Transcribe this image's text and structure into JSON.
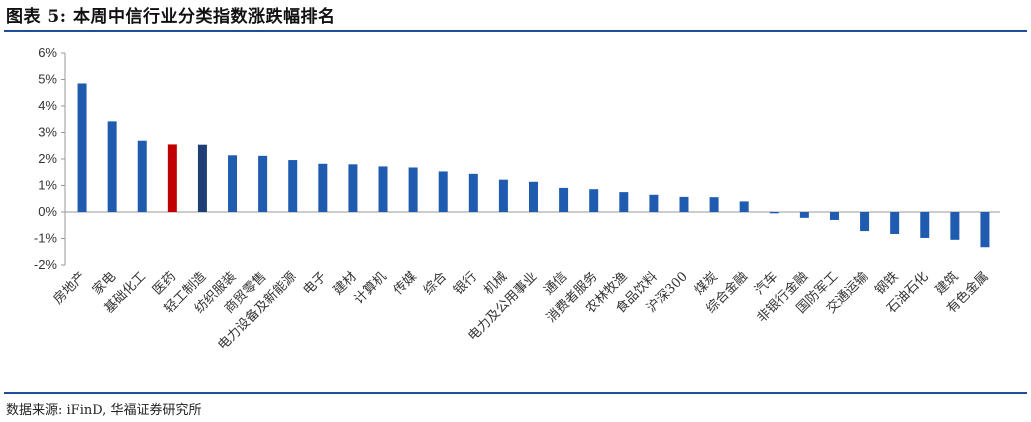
{
  "title": "图表 5:  本周中信行业分类指数涨跌幅排名",
  "source": "数据来源: iFinD, 华福证券研究所",
  "colors": {
    "default": "#1f5cb0",
    "highlight_red": "#c00000",
    "highlight_navy": "#1f3e73",
    "rule": "#1f4e9c"
  },
  "chart_data": {
    "type": "bar",
    "categories": [
      "房地产",
      "家电",
      "基础化工",
      "医药",
      "轻工制造",
      "纺织服装",
      "商贸零售",
      "电力设备及新能源",
      "电子",
      "建材",
      "计算机",
      "传媒",
      "综合",
      "银行",
      "机械",
      "电力及公用事业",
      "通信",
      "消费者服务",
      "农林牧渔",
      "食品饮料",
      "沪深300",
      "煤炭",
      "综合金融",
      "汽车",
      "非银行金融",
      "国防军工",
      "交通运输",
      "钢铁",
      "石油石化",
      "建筑",
      "有色金属"
    ],
    "values": [
      4.85,
      3.42,
      2.69,
      2.55,
      2.54,
      2.14,
      2.12,
      1.96,
      1.82,
      1.8,
      1.72,
      1.68,
      1.53,
      1.44,
      1.22,
      1.14,
      0.91,
      0.86,
      0.75,
      0.65,
      0.57,
      0.56,
      0.4,
      -0.05,
      -0.22,
      -0.3,
      -0.72,
      -0.83,
      -0.98,
      -1.05,
      -1.33
    ],
    "highlight": {
      "3": "highlight_red",
      "4": "highlight_navy"
    },
    "ylim": [
      -2,
      6
    ],
    "yticks": [
      6,
      5,
      4,
      3,
      2,
      1,
      0,
      -1,
      -2
    ],
    "ytick_labels": [
      "6%",
      "5%",
      "4%",
      "3%",
      "2%",
      "1%",
      "0%",
      "-1%",
      "-2%"
    ],
    "grid": false,
    "legend": "none",
    "xlabel": "",
    "ylabel": ""
  }
}
